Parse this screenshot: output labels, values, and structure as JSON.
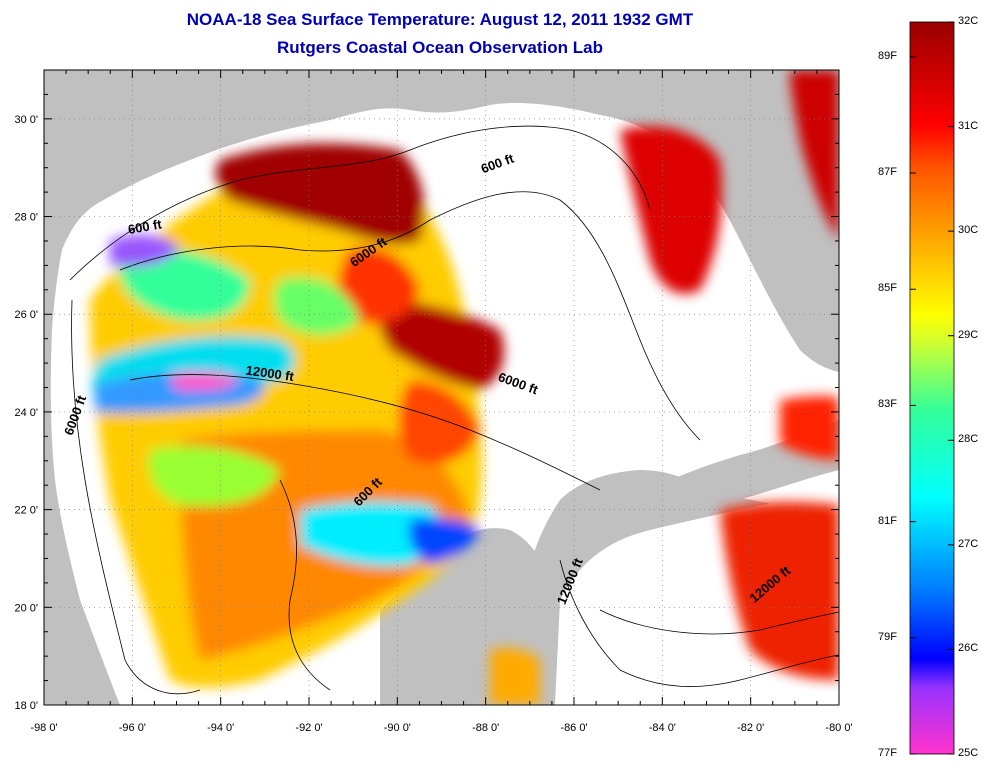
{
  "header": {
    "title": "NOAA-18 Sea Surface Temperature:  August 12, 2011 1932 GMT",
    "subtitle": "Rutgers Coastal Ocean Observation Lab"
  },
  "axes": {
    "x_ticks": [
      "-98 0'",
      "-96 0'",
      "-94 0'",
      "-92 0'",
      "-90 0'",
      "-88 0'",
      "-86 0'",
      "-84 0'",
      "-82 0'",
      "-80 0'"
    ],
    "x_values": [
      -98,
      -96,
      -94,
      -92,
      -90,
      -88,
      -86,
      -84,
      -82,
      -80
    ],
    "y_ticks": [
      "18 0'",
      "20 0'",
      "22 0'",
      "24 0'",
      "26 0'",
      "28 0'",
      "30 0'"
    ],
    "y_values": [
      18,
      20,
      22,
      24,
      26,
      28,
      30
    ],
    "lon_range": [
      -98,
      -80
    ],
    "lat_range": [
      18,
      31
    ]
  },
  "contours": [
    {
      "label": "600 ft",
      "lon": -87.7,
      "lat": 29.0,
      "angle": -20
    },
    {
      "label": "600 ft",
      "lon": -95.7,
      "lat": 27.7,
      "angle": -10
    },
    {
      "label": "6000 ft",
      "lon": -90.6,
      "lat": 27.2,
      "angle": -35
    },
    {
      "label": "12000 ft",
      "lon": -92.9,
      "lat": 24.7,
      "angle": 8
    },
    {
      "label": "6000 ft",
      "lon": -97.2,
      "lat": 23.9,
      "angle": -70
    },
    {
      "label": "6000 ft",
      "lon": -87.3,
      "lat": 24.5,
      "angle": 20
    },
    {
      "label": "600 ft",
      "lon": -90.6,
      "lat": 22.3,
      "angle": -45
    },
    {
      "label": "12000 ft",
      "lon": -86.0,
      "lat": 20.5,
      "angle": -68
    },
    {
      "label": "12000 ft",
      "lon": -81.5,
      "lat": 20.4,
      "angle": -40
    }
  ],
  "colorbar": {
    "celsius": [
      "32C",
      "31C",
      "30C",
      "29C",
      "28C",
      "27C",
      "26C",
      "25C"
    ],
    "celsius_values": [
      32,
      31,
      30,
      29,
      28,
      27,
      26,
      25
    ],
    "fahrenheit": [
      "89F",
      "87F",
      "85F",
      "83F",
      "81F",
      "79F",
      "77F"
    ],
    "fahrenheit_values": [
      89,
      87,
      85,
      83,
      81,
      79,
      77
    ],
    "range_c": [
      25,
      32
    ],
    "colors": [
      "#ff33cc",
      "#9933ff",
      "#0000ff",
      "#0077ff",
      "#00ffff",
      "#33ff99",
      "#ccff33",
      "#ffff00",
      "#ffaa00",
      "#ff5500",
      "#ff0000",
      "#cc0000",
      "#990000"
    ]
  },
  "colors": {
    "land": "#c0c0c0",
    "water_nodata": "#ffffff",
    "title": "#0000b4"
  }
}
